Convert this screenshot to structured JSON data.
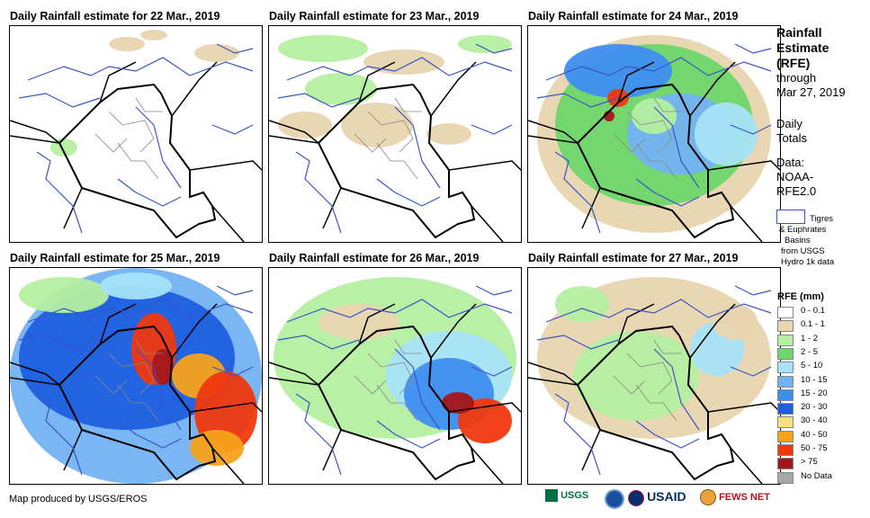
{
  "panels": [
    {
      "title": "Daily Rainfall estimate for 22 Mar., 2019"
    },
    {
      "title": "Daily Rainfall estimate for 23 Mar., 2019"
    },
    {
      "title": "Daily Rainfall estimate for 24 Mar., 2019"
    },
    {
      "title": "Daily Rainfall estimate for 25 Mar., 2019"
    },
    {
      "title": "Daily Rainfall estimate for 26 Mar., 2019"
    },
    {
      "title": "Daily Rainfall estimate for 27 Mar., 2019"
    }
  ],
  "sidebar": {
    "heading_line1": "Rainfall",
    "heading_line2": "Estimate",
    "heading_line3": "(RFE)",
    "through": "through",
    "date": "Mar 27, 2019",
    "totals_line1": "Daily",
    "totals_line2": "Totals",
    "data_label": "Data:",
    "data_source_line1": "NOAA-",
    "data_source_line2": "RFE2.0",
    "basin_line1": "Tigres",
    "basin_line2": "& Euphrates",
    "basin_line3": "Basins",
    "basin_line4": "from USGS",
    "basin_line5": "Hydro 1k data"
  },
  "legend": {
    "title": "RFE (mm)",
    "items": [
      {
        "label": "0 - 0.1",
        "color": "#ffffff"
      },
      {
        "label": "0.1 - 1",
        "color": "#e8d5b0"
      },
      {
        "label": "1 - 2",
        "color": "#b4efa0"
      },
      {
        "label": "2 - 5",
        "color": "#6ed66a"
      },
      {
        "label": "5 - 10",
        "color": "#a7e3f7"
      },
      {
        "label": "10 - 15",
        "color": "#73b2f2"
      },
      {
        "label": "15 - 20",
        "color": "#3e8ef0"
      },
      {
        "label": "20 - 30",
        "color": "#1e5fe0"
      },
      {
        "label": "30 - 40",
        "color": "#f7e07c"
      },
      {
        "label": "40 - 50",
        "color": "#f7a21b"
      },
      {
        "label": "50 - 75",
        "color": "#f0380f"
      },
      {
        "label": "> 75",
        "color": "#a5161b"
      },
      {
        "label": "No Data",
        "color": "#a6a6a6"
      }
    ]
  },
  "footer": {
    "credit": "Map produced by USGS/EROS",
    "logo_usgs": "USGS",
    "logo_usaid": "USAID",
    "logo_fewsnet": "FEWS NET"
  }
}
